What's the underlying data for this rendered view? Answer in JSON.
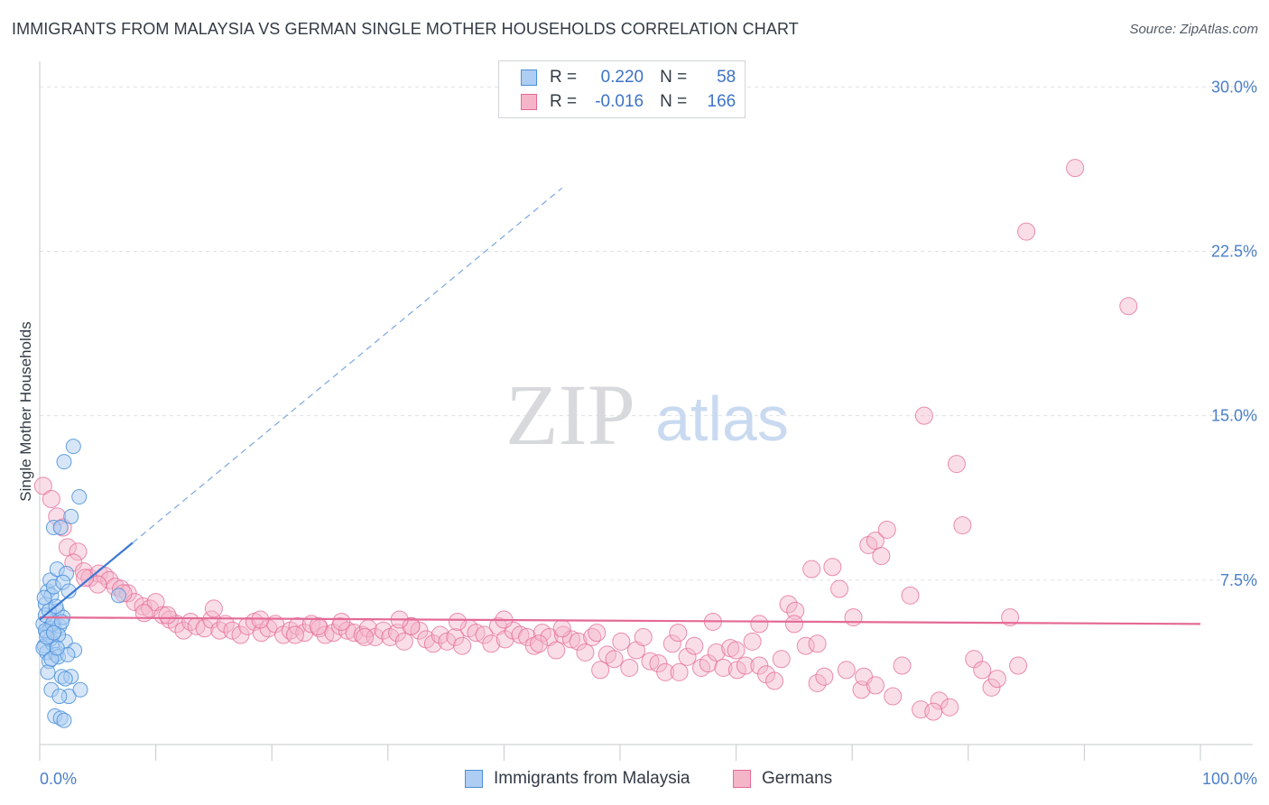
{
  "title": "IMMIGRANTS FROM MALAYSIA VS GERMAN SINGLE MOTHER HOUSEHOLDS CORRELATION CHART",
  "source": "Source: ZipAtlas.com",
  "watermark": {
    "zip": "ZIP",
    "atlas": "atlas"
  },
  "colors": {
    "blue": "#4a90d9",
    "blue_fill": "#aecdf2",
    "pink": "#e46a95",
    "pink_fill": "#f5b5c9",
    "tick_text": "#4a7fc8",
    "grid": "#dde1e6"
  },
  "legend": {
    "rows": [
      {
        "r_label": "R =",
        "r_value": "0.220",
        "n_label": "N =",
        "n_value": "58"
      },
      {
        "r_label": "R =",
        "r_value": "-0.016",
        "n_label": "N =",
        "n_value": "166"
      }
    ]
  },
  "bottom_legend": [
    "Immigrants from Malaysia",
    "Germans"
  ],
  "chart_data": {
    "type": "scatter",
    "title": "IMMIGRANTS FROM MALAYSIA VS GERMAN SINGLE MOTHER HOUSEHOLDS CORRELATION CHART",
    "xlabel": "",
    "ylabel": "Single Mother Households",
    "xlim": [
      0,
      100
    ],
    "ylim": [
      0,
      31
    ],
    "x_ticks": [
      "0.0%",
      "100.0%"
    ],
    "y_ticks": [
      {
        "value": 7.5,
        "label": "7.5%"
      },
      {
        "value": 15.0,
        "label": "15.0%"
      },
      {
        "value": 22.5,
        "label": "22.5%"
      },
      {
        "value": 30.0,
        "label": "30.0%"
      }
    ],
    "series": [
      {
        "name": "Immigrants from Malaysia",
        "color": "#4a90d9",
        "r": 0.22,
        "n": 58,
        "trend": {
          "x0": 0,
          "y0": 5.7,
          "x1": 8.0,
          "y1": 9.2,
          "dash_to_x": 45.0
        },
        "points": [
          [
            0.3,
            5.5
          ],
          [
            0.5,
            6.4
          ],
          [
            0.4,
            4.5
          ],
          [
            0.7,
            7.0
          ],
          [
            0.9,
            5.3
          ],
          [
            1.0,
            6.8
          ],
          [
            1.2,
            5.6
          ],
          [
            1.5,
            6.1
          ],
          [
            0.6,
            4.2
          ],
          [
            0.8,
            3.8
          ],
          [
            1.1,
            4.6
          ],
          [
            1.3,
            5.2
          ],
          [
            0.5,
            5.9
          ],
          [
            0.9,
            7.5
          ],
          [
            1.4,
            4.1
          ],
          [
            1.7,
            5.4
          ],
          [
            2.0,
            5.8
          ],
          [
            1.6,
            4.0
          ],
          [
            2.2,
            4.7
          ],
          [
            1.9,
            3.1
          ],
          [
            0.7,
            3.3
          ],
          [
            1.0,
            2.5
          ],
          [
            1.3,
            1.3
          ],
          [
            1.8,
            1.2
          ],
          [
            2.1,
            1.1
          ],
          [
            2.5,
            2.2
          ],
          [
            3.5,
            2.5
          ],
          [
            2.7,
            3.1
          ],
          [
            3.0,
            4.3
          ],
          [
            2.4,
            4.1
          ],
          [
            1.5,
            8.0
          ],
          [
            2.3,
            7.8
          ],
          [
            1.2,
            7.2
          ],
          [
            2.0,
            7.4
          ],
          [
            2.5,
            7.0
          ],
          [
            1.2,
            9.9
          ],
          [
            1.8,
            9.9
          ],
          [
            2.7,
            10.4
          ],
          [
            3.4,
            11.3
          ],
          [
            2.1,
            12.9
          ],
          [
            2.9,
            13.6
          ],
          [
            0.4,
            6.7
          ],
          [
            0.6,
            5.1
          ],
          [
            0.9,
            4.8
          ],
          [
            1.6,
            5.0
          ],
          [
            1.1,
            5.5
          ],
          [
            1.9,
            5.6
          ],
          [
            0.3,
            4.4
          ],
          [
            0.8,
            6.1
          ],
          [
            1.4,
            6.3
          ],
          [
            0.5,
            5.2
          ],
          [
            1.0,
            3.9
          ],
          [
            2.2,
            3.0
          ],
          [
            1.7,
            2.2
          ],
          [
            0.6,
            4.9
          ],
          [
            1.2,
            5.1
          ],
          [
            6.8,
            6.8
          ],
          [
            1.5,
            4.4
          ]
        ]
      },
      {
        "name": "Germans",
        "color": "#e46a95",
        "r": -0.016,
        "n": 166,
        "trend": {
          "x0": 0,
          "y0": 5.8,
          "x1": 100,
          "y1": 5.5
        },
        "points": [
          [
            0.3,
            11.8
          ],
          [
            1.0,
            11.2
          ],
          [
            1.5,
            10.4
          ],
          [
            2.0,
            9.9
          ],
          [
            2.4,
            9.0
          ],
          [
            3.3,
            8.8
          ],
          [
            2.9,
            8.3
          ],
          [
            3.8,
            7.9
          ],
          [
            4.3,
            7.6
          ],
          [
            5.1,
            7.8
          ],
          [
            5.6,
            7.7
          ],
          [
            6.0,
            7.5
          ],
          [
            6.5,
            7.2
          ],
          [
            7.0,
            7.1
          ],
          [
            7.6,
            6.9
          ],
          [
            8.2,
            6.5
          ],
          [
            8.9,
            6.3
          ],
          [
            9.5,
            6.2
          ],
          [
            10.0,
            6.5
          ],
          [
            10.6,
            5.9
          ],
          [
            11.2,
            5.7
          ],
          [
            11.8,
            5.5
          ],
          [
            12.4,
            5.2
          ],
          [
            13.0,
            5.6
          ],
          [
            13.5,
            5.4
          ],
          [
            14.2,
            5.3
          ],
          [
            14.8,
            5.7
          ],
          [
            15.5,
            5.2
          ],
          [
            16.0,
            5.5
          ],
          [
            16.6,
            5.2
          ],
          [
            17.3,
            5.0
          ],
          [
            17.9,
            5.4
          ],
          [
            18.5,
            5.6
          ],
          [
            19.1,
            5.1
          ],
          [
            19.7,
            5.3
          ],
          [
            20.3,
            5.5
          ],
          [
            21.0,
            5.0
          ],
          [
            21.6,
            5.2
          ],
          [
            22.2,
            5.4
          ],
          [
            22.8,
            5.1
          ],
          [
            23.4,
            5.5
          ],
          [
            24.1,
            5.3
          ],
          [
            24.6,
            5.0
          ],
          [
            25.3,
            5.1
          ],
          [
            25.9,
            5.4
          ],
          [
            26.5,
            5.2
          ],
          [
            27.1,
            5.1
          ],
          [
            27.8,
            5.0
          ],
          [
            28.3,
            5.3
          ],
          [
            28.9,
            4.9
          ],
          [
            29.6,
            5.2
          ],
          [
            30.2,
            4.9
          ],
          [
            30.8,
            5.1
          ],
          [
            31.4,
            4.7
          ],
          [
            32.0,
            5.4
          ],
          [
            32.7,
            5.2
          ],
          [
            33.3,
            4.8
          ],
          [
            33.9,
            4.6
          ],
          [
            34.5,
            5.0
          ],
          [
            35.1,
            4.7
          ],
          [
            35.8,
            4.9
          ],
          [
            36.4,
            4.5
          ],
          [
            37.0,
            5.3
          ],
          [
            37.6,
            5.1
          ],
          [
            38.3,
            5.0
          ],
          [
            38.9,
            4.6
          ],
          [
            39.5,
            5.4
          ],
          [
            40.1,
            4.8
          ],
          [
            40.8,
            5.2
          ],
          [
            41.4,
            5.0
          ],
          [
            42.0,
            4.9
          ],
          [
            42.6,
            4.5
          ],
          [
            43.3,
            5.1
          ],
          [
            43.9,
            4.9
          ],
          [
            44.5,
            4.3
          ],
          [
            45.1,
            5.0
          ],
          [
            45.8,
            4.8
          ],
          [
            46.4,
            4.7
          ],
          [
            47.0,
            4.2
          ],
          [
            47.6,
            4.9
          ],
          [
            48.3,
            3.4
          ],
          [
            48.9,
            4.1
          ],
          [
            49.5,
            3.9
          ],
          [
            50.1,
            4.7
          ],
          [
            50.8,
            3.5
          ],
          [
            51.4,
            4.3
          ],
          [
            52.0,
            4.9
          ],
          [
            52.6,
            3.8
          ],
          [
            53.3,
            3.7
          ],
          [
            53.9,
            3.3
          ],
          [
            54.5,
            4.6
          ],
          [
            55.1,
            3.3
          ],
          [
            55.8,
            4.0
          ],
          [
            56.4,
            4.5
          ],
          [
            57.0,
            3.5
          ],
          [
            57.6,
            3.7
          ],
          [
            58.3,
            4.2
          ],
          [
            58.9,
            3.5
          ],
          [
            59.5,
            4.4
          ],
          [
            60.1,
            3.4
          ],
          [
            60.8,
            3.6
          ],
          [
            61.4,
            4.7
          ],
          [
            62.0,
            3.6
          ],
          [
            62.6,
            3.2
          ],
          [
            63.3,
            2.9
          ],
          [
            63.9,
            3.9
          ],
          [
            64.5,
            6.4
          ],
          [
            65.1,
            6.1
          ],
          [
            66.0,
            4.5
          ],
          [
            66.5,
            8.0
          ],
          [
            67.0,
            2.8
          ],
          [
            67.6,
            3.1
          ],
          [
            68.3,
            8.1
          ],
          [
            68.9,
            7.1
          ],
          [
            69.5,
            3.4
          ],
          [
            70.1,
            5.8
          ],
          [
            70.8,
            2.5
          ],
          [
            71.4,
            9.1
          ],
          [
            71.0,
            3.1
          ],
          [
            72.0,
            9.3
          ],
          [
            72.5,
            8.6
          ],
          [
            73.0,
            9.8
          ],
          [
            73.5,
            2.2
          ],
          [
            74.3,
            3.6
          ],
          [
            75.0,
            6.8
          ],
          [
            75.9,
            1.6
          ],
          [
            76.2,
            15.0
          ],
          [
            77.5,
            2.0
          ],
          [
            78.4,
            1.7
          ],
          [
            79.0,
            12.8
          ],
          [
            79.5,
            10.0
          ],
          [
            80.5,
            3.9
          ],
          [
            81.2,
            3.4
          ],
          [
            82.0,
            2.6
          ],
          [
            82.5,
            3.0
          ],
          [
            83.6,
            5.8
          ],
          [
            84.3,
            3.6
          ],
          [
            85.0,
            23.4
          ],
          [
            89.2,
            26.3
          ],
          [
            93.8,
            20.0
          ],
          [
            32.0,
            5.4
          ],
          [
            45.0,
            5.3
          ],
          [
            40.0,
            5.7
          ],
          [
            60.0,
            4.3
          ],
          [
            55.0,
            5.1
          ],
          [
            65.0,
            5.5
          ],
          [
            58.0,
            5.6
          ],
          [
            62.0,
            5.5
          ],
          [
            48.0,
            5.1
          ],
          [
            36.0,
            5.6
          ],
          [
            26.0,
            5.6
          ],
          [
            22.0,
            5.0
          ],
          [
            9.0,
            6.0
          ],
          [
            11.0,
            5.9
          ],
          [
            15.0,
            6.2
          ],
          [
            19.0,
            5.7
          ],
          [
            24.0,
            5.4
          ],
          [
            31.0,
            5.7
          ],
          [
            5.0,
            7.3
          ],
          [
            3.9,
            7.6
          ],
          [
            7.2,
            6.9
          ],
          [
            28.0,
            4.9
          ],
          [
            43.0,
            4.6
          ],
          [
            67.0,
            4.6
          ],
          [
            72.0,
            2.7
          ],
          [
            77.0,
            1.5
          ]
        ]
      }
    ]
  }
}
